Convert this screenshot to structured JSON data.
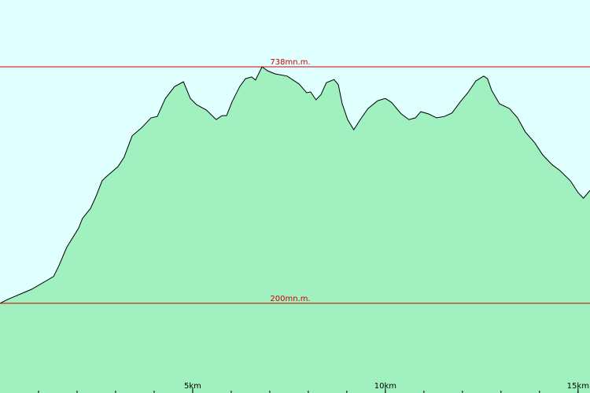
{
  "chart_data": {
    "type": "area",
    "x": [
      0,
      0.2,
      0.82,
      1.39,
      1.53,
      1.73,
      2.04,
      2.14,
      2.35,
      2.49,
      2.65,
      2.76,
      3.06,
      3.22,
      3.43,
      3.67,
      3.92,
      4.08,
      4.29,
      4.53,
      4.76,
      4.94,
      5.1,
      5.35,
      5.61,
      5.76,
      5.88,
      6.02,
      6.22,
      6.37,
      6.53,
      6.63,
      6.8,
      6.94,
      7.14,
      7.45,
      7.76,
      7.96,
      8.06,
      8.2,
      8.33,
      8.47,
      8.67,
      8.78,
      8.88,
      9.02,
      9.18,
      9.35,
      9.55,
      9.8,
      10,
      10.16,
      10.41,
      10.61,
      10.78,
      10.92,
      11.12,
      11.33,
      11.53,
      11.73,
      11.94,
      12.14,
      12.35,
      12.55,
      12.65,
      12.76,
      12.96,
      13.22,
      13.43,
      13.63,
      13.88,
      14.08,
      14.33,
      14.53,
      14.8,
      15,
      15.14,
      15.31
    ],
    "values": [
      200,
      209,
      232,
      261,
      286,
      327,
      371,
      393,
      416,
      443,
      479,
      488,
      511,
      532,
      581,
      599,
      622,
      625,
      666,
      693,
      704,
      666,
      652,
      640,
      618,
      627,
      627,
      658,
      693,
      711,
      715,
      708,
      738,
      729,
      722,
      717,
      699,
      679,
      681,
      663,
      675,
      702,
      709,
      697,
      654,
      618,
      595,
      618,
      643,
      661,
      666,
      657,
      631,
      618,
      622,
      636,
      631,
      622,
      625,
      633,
      658,
      679,
      706,
      717,
      711,
      684,
      654,
      643,
      622,
      590,
      565,
      538,
      515,
      502,
      479,
      452,
      439,
      457
    ],
    "fill": "#a0f0c0",
    "line_color": "#000000",
    "background": "#e0ffff",
    "xlim": [
      0,
      15.31
    ],
    "ylim": [
      -4,
      890
    ],
    "xticks": [
      {
        "value": 5,
        "label": "5km"
      },
      {
        "value": 10,
        "label": "10km"
      },
      {
        "value": 15,
        "label": "15km"
      }
    ],
    "xminorticks": [
      1,
      2,
      3,
      4,
      5,
      6,
      7,
      8,
      9,
      10,
      11,
      12,
      13,
      14,
      15
    ],
    "reference_lines": [
      {
        "value": 738,
        "label": "738mn.m."
      },
      {
        "value": 200,
        "label": "200mn.m."
      }
    ],
    "reference_color": "#cc0000"
  }
}
